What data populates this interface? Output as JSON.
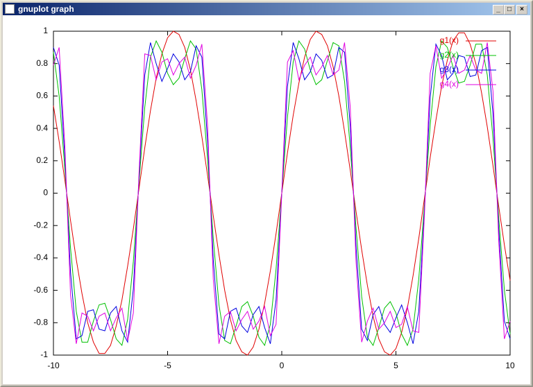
{
  "window": {
    "title": "gnuplot graph"
  },
  "chart_data": {
    "type": "line",
    "x": [
      -10,
      -9.75,
      -9.5,
      -9.25,
      -9,
      -8.75,
      -8.5,
      -8.25,
      -8,
      -7.75,
      -7.5,
      -7.25,
      -7,
      -6.75,
      -6.5,
      -6.25,
      -6,
      -5.75,
      -5.5,
      -5.25,
      -5,
      -4.75,
      -4.5,
      -4.25,
      -4,
      -3.75,
      -3.5,
      -3.25,
      -3,
      -2.75,
      -2.5,
      -2.25,
      -2,
      -1.75,
      -1.5,
      -1.25,
      -1,
      -0.75,
      -0.5,
      -0.25,
      0,
      0.25,
      0.5,
      0.75,
      1,
      1.25,
      1.5,
      1.75,
      2,
      2.25,
      2.5,
      2.75,
      3,
      3.25,
      3.5,
      3.75,
      4,
      4.25,
      4.5,
      4.75,
      5,
      5.25,
      5.5,
      5.75,
      6,
      6.25,
      6.5,
      6.75,
      7,
      7.25,
      7.5,
      7.75,
      8,
      8.25,
      8.5,
      8.75,
      9,
      9.25,
      9.5,
      9.75,
      10
    ],
    "series": [
      {
        "name": "g1(x)",
        "color": "#e00000",
        "values": [
          0.54,
          0.32,
          0.08,
          -0.17,
          -0.41,
          -0.62,
          -0.8,
          -0.92,
          -0.99,
          -0.99,
          -0.94,
          -0.82,
          -0.66,
          -0.45,
          -0.22,
          0.03,
          0.28,
          0.51,
          0.71,
          0.86,
          0.96,
          1,
          0.98,
          0.9,
          0.76,
          0.57,
          0.35,
          0.11,
          -0.14,
          -0.38,
          -0.6,
          -0.78,
          -0.91,
          -0.98,
          -1,
          -0.95,
          -0.84,
          -0.68,
          -0.48,
          -0.25,
          0,
          0.25,
          0.48,
          0.68,
          0.84,
          0.95,
          1,
          0.98,
          0.91,
          0.78,
          0.6,
          0.38,
          0.14,
          -0.11,
          -0.35,
          -0.57,
          -0.76,
          -0.9,
          -0.98,
          -1,
          -0.96,
          -0.86,
          -0.71,
          -0.51,
          -0.28,
          -0.03,
          0.22,
          0.45,
          0.66,
          0.82,
          0.94,
          0.99,
          0.99,
          0.92,
          0.8,
          0.62,
          0.41,
          0.17,
          -0.08,
          -0.32,
          -0.54
        ]
      },
      {
        "name": "g2(x)",
        "color": "#00c000",
        "values": [
          0.87,
          0.6,
          0.15,
          -0.34,
          -0.73,
          -0.92,
          -0.92,
          -0.79,
          -0.69,
          -0.68,
          -0.78,
          -0.9,
          -0.94,
          -0.78,
          -0.42,
          0.07,
          0.53,
          0.84,
          0.94,
          0.87,
          0.74,
          0.67,
          0.71,
          0.83,
          0.94,
          0.89,
          0.64,
          0.21,
          -0.28,
          -0.69,
          -0.91,
          -0.93,
          -0.82,
          -0.7,
          -0.67,
          -0.76,
          -0.89,
          -0.94,
          -0.81,
          -0.47,
          0,
          0.47,
          0.81,
          0.94,
          0.89,
          0.76,
          0.67,
          0.7,
          0.82,
          0.93,
          0.91,
          0.69,
          0.28,
          -0.21,
          -0.64,
          -0.89,
          -0.94,
          -0.83,
          -0.71,
          -0.67,
          -0.74,
          -0.87,
          -0.94,
          -0.84,
          -0.53,
          -0.07,
          0.42,
          0.78,
          0.94,
          0.9,
          0.78,
          0.68,
          0.69,
          0.79,
          0.92,
          0.92,
          0.73,
          0.34,
          -0.15,
          -0.6,
          -0.87
        ]
      },
      {
        "name": "g3(x)",
        "color": "#0000e0",
        "values": [
          0.9,
          0.79,
          0.22,
          -0.49,
          -0.9,
          -0.88,
          -0.73,
          -0.72,
          -0.84,
          -0.85,
          -0.74,
          -0.7,
          -0.85,
          -0.92,
          -0.59,
          0.1,
          0.73,
          0.93,
          0.8,
          0.69,
          0.77,
          0.86,
          0.81,
          0.7,
          0.75,
          0.91,
          0.84,
          0.32,
          -0.41,
          -0.87,
          -0.9,
          -0.73,
          -0.71,
          -0.82,
          -0.86,
          -0.75,
          -0.7,
          -0.83,
          -0.93,
          -0.66,
          0,
          0.66,
          0.93,
          0.83,
          0.7,
          0.75,
          0.86,
          0.82,
          0.71,
          0.73,
          0.9,
          0.87,
          0.41,
          -0.32,
          -0.84,
          -0.91,
          -0.75,
          -0.7,
          -0.81,
          -0.86,
          -0.77,
          -0.69,
          -0.8,
          -0.93,
          -0.73,
          -0.1,
          0.59,
          0.92,
          0.85,
          0.7,
          0.74,
          0.85,
          0.84,
          0.72,
          0.73,
          0.88,
          0.9,
          0.49,
          -0.22,
          -0.79,
          -0.9
        ]
      },
      {
        "name": "g4(x)",
        "color": "#e000e0",
        "values": [
          0.79,
          0.9,
          0.29,
          -0.63,
          -0.93,
          -0.74,
          -0.76,
          -0.85,
          -0.76,
          -0.74,
          -0.85,
          -0.77,
          -0.71,
          -0.91,
          -0.74,
          0.13,
          0.86,
          0.85,
          0.7,
          0.81,
          0.83,
          0.73,
          0.8,
          0.84,
          0.71,
          0.79,
          0.92,
          0.42,
          -0.53,
          -0.93,
          -0.76,
          -0.73,
          -0.85,
          -0.78,
          -0.73,
          -0.84,
          -0.79,
          -0.7,
          -0.88,
          -0.81,
          0,
          0.81,
          0.88,
          0.7,
          0.79,
          0.84,
          0.73,
          0.78,
          0.85,
          0.73,
          0.76,
          0.93,
          0.53,
          -0.42,
          -0.92,
          -0.79,
          -0.71,
          -0.84,
          -0.8,
          -0.73,
          -0.83,
          -0.81,
          -0.7,
          -0.85,
          -0.86,
          -0.13,
          0.74,
          0.91,
          0.71,
          0.77,
          0.85,
          0.74,
          0.76,
          0.85,
          0.76,
          0.74,
          0.93,
          0.63,
          -0.29,
          -0.9,
          -0.79
        ]
      }
    ],
    "xlim": [
      -10,
      10
    ],
    "xticks": [
      -10,
      -5,
      0,
      5,
      10
    ],
    "ylim": [
      -1,
      1
    ],
    "yticks": [
      -1,
      -0.8,
      -0.6,
      -0.4,
      -0.2,
      0,
      0.2,
      0.4,
      0.6,
      0.8,
      1
    ],
    "grid": false,
    "legend": "top-right"
  }
}
